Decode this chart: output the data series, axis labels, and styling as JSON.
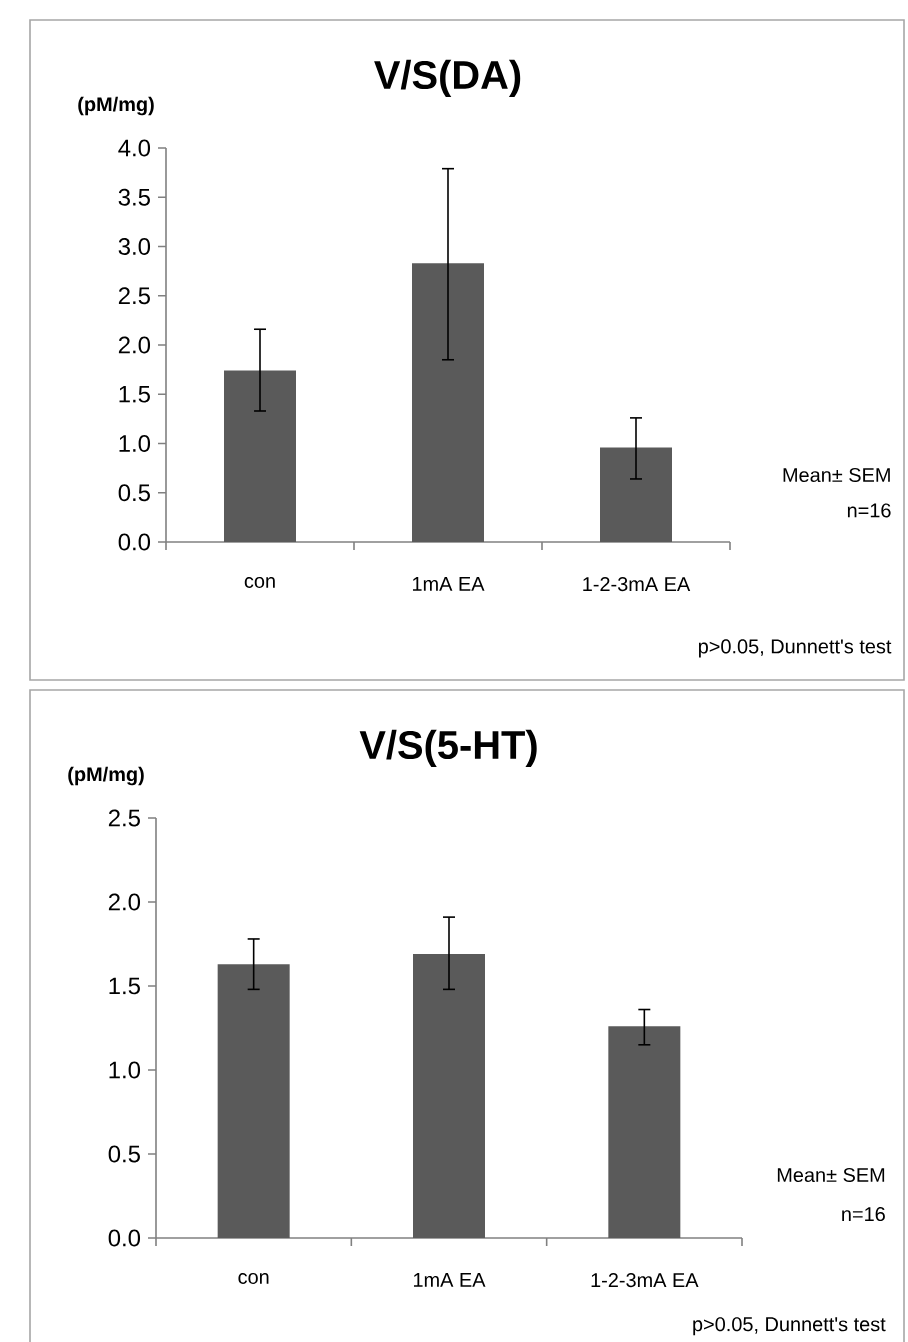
{
  "chart_data": [
    {
      "type": "bar",
      "title": "V/S(DA)",
      "ylabel": "(pM/mg)",
      "categories": [
        "con",
        "1mA EA",
        "1-2-3mA EA"
      ],
      "values": [
        1.74,
        2.83,
        0.96
      ],
      "errors": [
        [
          1.33,
          2.16
        ],
        [
          1.85,
          3.79
        ],
        [
          0.64,
          1.26
        ]
      ],
      "color": "#5a5a5a",
      "ylim": [
        0,
        4
      ],
      "yticks": [
        {
          "value": 0,
          "label": "0.0"
        },
        0.5,
        {
          "value": 1,
          "label": "1.0"
        },
        1.5,
        {
          "value": 2,
          "label": "2.0"
        },
        2.5,
        {
          "value": 3,
          "label": "3.0"
        },
        3.5,
        {
          "value": 4,
          "label": "4.0"
        }
      ],
      "grid": false,
      "annotations": [
        "Mean± SEM",
        "n=16",
        "p>0.05, Dunnett's test"
      ]
    },
    {
      "type": "bar",
      "title": "V/S(5-HT)",
      "ylabel": "(pM/mg)",
      "categories": [
        "con",
        "1mA EA",
        "1-2-3mA EA"
      ],
      "values": [
        1.63,
        1.69,
        1.26
      ],
      "errors": [
        [
          1.48,
          1.78
        ],
        [
          1.48,
          1.91
        ],
        [
          1.15,
          1.36
        ]
      ],
      "color": "#5a5a5a",
      "ylim": [
        0,
        2.5
      ],
      "yticks": [
        {
          "value": 0,
          "label": "0.0"
        },
        0.5,
        {
          "value": 1,
          "label": "1.0"
        },
        1.5,
        {
          "value": 2,
          "label": "2.0"
        },
        2.5
      ],
      "grid": false,
      "annotations": [
        "Mean± SEM",
        "n=16",
        "p>0.05, Dunnett's test"
      ]
    }
  ]
}
